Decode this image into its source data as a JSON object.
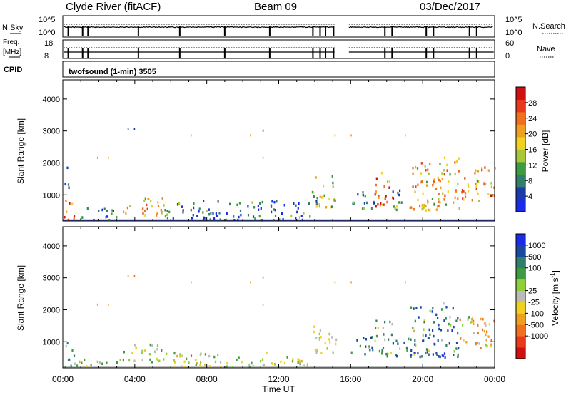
{
  "header": {
    "station": "Clyde River (fitACF)",
    "beam": "Beam 09",
    "date": "03/Dec/2017"
  },
  "summary": {
    "nsky_label": "N.Sky",
    "nsearch_label": "N.Search",
    "nsky_ticks": [
      "10^5",
      "10^0"
    ],
    "nsearch_ticks": [
      "10^5",
      "10^0"
    ],
    "freq_label": "Freq.",
    "freq_unit": "[MHz]",
    "freq_ticks": [
      "18",
      "8"
    ],
    "nave_label": "Nave",
    "nave_ticks": [
      "60",
      "0"
    ],
    "cpid_label": "CPID",
    "cpid_text": "twofsound (1-min) 3505"
  },
  "chart_data": [
    {
      "type": "heatmap",
      "name": "power",
      "ylabel": "Slant Range [km]",
      "ylim": [
        180,
        4600
      ],
      "yticks": [
        1000,
        2000,
        3000,
        4000
      ],
      "xlabel": "Time UT",
      "xlim": [
        0,
        24
      ],
      "xticks": [
        "00:00",
        "04:00",
        "08:00",
        "12:00",
        "16:00",
        "20:00",
        "00:00"
      ],
      "colorbar": {
        "label": "Power [dB]",
        "range": [
          0,
          32
        ],
        "ticks": [
          "4",
          "8",
          "12",
          "16",
          "20",
          "24",
          "28"
        ],
        "colors": [
          "#1a2ce8",
          "#1a3aa8",
          "#2f7f6a",
          "#3f9b3f",
          "#a8c83a",
          "#f0d020",
          "#f0a020",
          "#f07020",
          "#e83a1a",
          "#d01010"
        ]
      },
      "regions": [
        {
          "t": [
            0.0,
            0.6
          ],
          "r": [
            200,
            950
          ],
          "value": 24
        },
        {
          "t": [
            0.05,
            0.4
          ],
          "r": [
            1200,
            1850
          ],
          "value": 6
        },
        {
          "t": [
            0.6,
            3.0
          ],
          "r": [
            200,
            600
          ],
          "value": 8
        },
        {
          "t": [
            3.0,
            5.6
          ],
          "r": [
            350,
            900
          ],
          "value": 20
        },
        {
          "t": [
            5.6,
            13.8
          ],
          "r": [
            200,
            800
          ],
          "value": 6
        },
        {
          "t": [
            13.8,
            15.2
          ],
          "r": [
            600,
            1600
          ],
          "value": 14
        },
        {
          "t": [
            16.0,
            17.3
          ],
          "r": [
            550,
            1150
          ],
          "value": 12
        },
        {
          "t": [
            17.3,
            18.3
          ],
          "r": [
            500,
            1700
          ],
          "value": 26
        },
        {
          "t": [
            18.3,
            19.3
          ],
          "r": [
            500,
            1150
          ],
          "value": 10
        },
        {
          "t": [
            19.3,
            22.0
          ],
          "r": [
            500,
            2200
          ],
          "value": 20
        },
        {
          "t": [
            22.0,
            24.0
          ],
          "r": [
            800,
            1850
          ],
          "value": 22
        }
      ],
      "points": [
        {
          "t": 3.6,
          "r": 3050,
          "value": 6
        },
        {
          "t": 3.95,
          "r": 3050,
          "value": 6
        },
        {
          "t": 7.1,
          "r": 2850,
          "value": 20
        },
        {
          "t": 10.4,
          "r": 2850,
          "value": 20
        },
        {
          "t": 11.1,
          "r": 3000,
          "value": 6
        },
        {
          "t": 1.9,
          "r": 2150,
          "value": 20
        },
        {
          "t": 2.5,
          "r": 2150,
          "value": 20
        },
        {
          "t": 11.1,
          "r": 2150,
          "value": 20
        },
        {
          "t": 15.1,
          "r": 2850,
          "value": 20
        },
        {
          "t": 16.0,
          "r": 2850,
          "value": 20
        },
        {
          "t": 19.0,
          "r": 2850,
          "value": 20
        }
      ]
    },
    {
      "type": "heatmap",
      "name": "velocity",
      "ylabel": "Slant Range [km]",
      "ylim": [
        180,
        4600
      ],
      "yticks": [
        1000,
        2000,
        3000,
        4000
      ],
      "xlabel": "Time UT",
      "xlim": [
        0,
        24
      ],
      "xticks": [
        "00:00",
        "04:00",
        "08:00",
        "12:00",
        "16:00",
        "20:00",
        "00:00"
      ],
      "colorbar": {
        "label": "Velocity [m s",
        "label_sup": "-1",
        "label_end": "]",
        "ticks": [
          "1000",
          "500",
          "100",
          "25",
          "-25",
          "-100",
          "-500",
          "-1000"
        ],
        "colors": [
          "#1a2ce8",
          "#1a4aa0",
          "#2f7f6a",
          "#3f9b3f",
          "#8fd03a",
          "#bbbbbb",
          "#f0d020",
          "#f0a020",
          "#f07020",
          "#e83a1a",
          "#d01010"
        ]
      },
      "regions": [
        {
          "t": [
            0.0,
            0.6
          ],
          "r": [
            200,
            950
          ],
          "value": 150
        },
        {
          "t": [
            0.6,
            3.0
          ],
          "r": [
            200,
            500
          ],
          "value": 80
        },
        {
          "t": [
            3.0,
            5.6
          ],
          "r": [
            350,
            900
          ],
          "value": 60
        },
        {
          "t": [
            5.6,
            13.8
          ],
          "r": [
            200,
            650
          ],
          "value": 40
        },
        {
          "t": [
            13.8,
            15.2
          ],
          "r": [
            600,
            1500
          ],
          "value": 0
        },
        {
          "t": [
            16.0,
            17.3
          ],
          "r": [
            550,
            1150
          ],
          "value": 300
        },
        {
          "t": [
            17.3,
            18.3
          ],
          "r": [
            500,
            1700
          ],
          "value": 200
        },
        {
          "t": [
            18.3,
            19.3
          ],
          "r": [
            500,
            1150
          ],
          "value": 400
        },
        {
          "t": [
            19.3,
            22.0
          ],
          "r": [
            500,
            2200
          ],
          "value": 500
        },
        {
          "t": [
            22.0,
            24.0
          ],
          "r": [
            800,
            1850
          ],
          "value": -150
        }
      ],
      "points": [
        {
          "t": 3.6,
          "r": 3050,
          "value": -400
        },
        {
          "t": 3.95,
          "r": 3050,
          "value": -400
        },
        {
          "t": 7.1,
          "r": 2850,
          "value": -150
        },
        {
          "t": 10.4,
          "r": 2850,
          "value": -150
        },
        {
          "t": 11.1,
          "r": 3000,
          "value": -400
        },
        {
          "t": 1.9,
          "r": 2150,
          "value": -150
        },
        {
          "t": 2.5,
          "r": 2150,
          "value": -150
        },
        {
          "t": 11.1,
          "r": 2150,
          "value": -150
        },
        {
          "t": 15.1,
          "r": 2850,
          "value": -150
        },
        {
          "t": 16.0,
          "r": 2850,
          "value": -150
        },
        {
          "t": 19.0,
          "r": 2850,
          "value": -150
        }
      ]
    }
  ]
}
